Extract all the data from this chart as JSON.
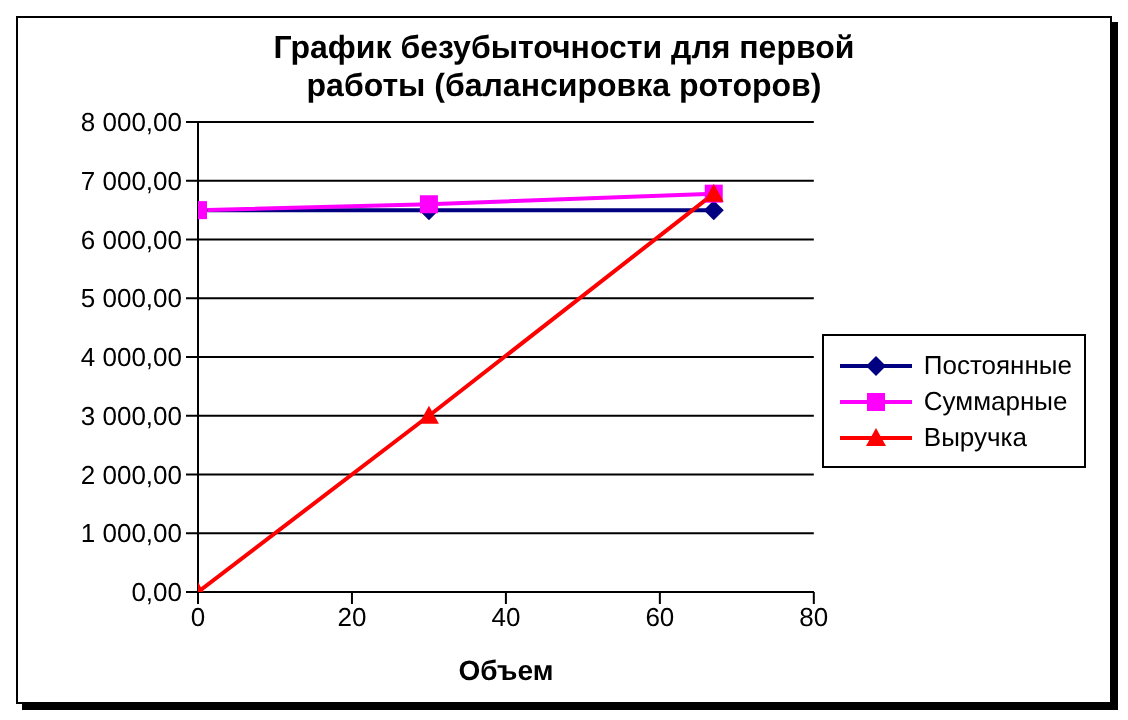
{
  "chart_data": {
    "type": "line",
    "title": "График безубыточности для первой работы (балансировка роторов)",
    "xlabel": "Объем",
    "x": [
      0,
      30,
      67
    ],
    "series": [
      {
        "name": "Постоянные",
        "color": "#000080",
        "values": [
          6500,
          6500,
          6500
        ],
        "marker": "diamond"
      },
      {
        "name": "Суммарные",
        "color": "#ff00ff",
        "values": [
          6500,
          6600,
          6780
        ],
        "marker": "square"
      },
      {
        "name": "Выручка",
        "color": "#ff0000",
        "values": [
          0,
          3000,
          6780
        ],
        "marker": "triangle"
      }
    ],
    "xlim": [
      0,
      80
    ],
    "xticks": [
      0,
      20,
      40,
      60,
      80
    ],
    "ylim": [
      0,
      8000
    ],
    "yticks": [
      {
        "value": 0,
        "label": "0,00"
      },
      {
        "value": 1000,
        "label": "1 000,00"
      },
      {
        "value": 2000,
        "label": "2 000,00"
      },
      {
        "value": 3000,
        "label": "3 000,00"
      },
      {
        "value": 4000,
        "label": "4 000,00"
      },
      {
        "value": 5000,
        "label": "5 000,00"
      },
      {
        "value": 6000,
        "label": "6 000,00"
      },
      {
        "value": 7000,
        "label": "7 000,00"
      },
      {
        "value": 8000,
        "label": "8 000,00"
      }
    ],
    "grid": "y",
    "legend": "right"
  }
}
